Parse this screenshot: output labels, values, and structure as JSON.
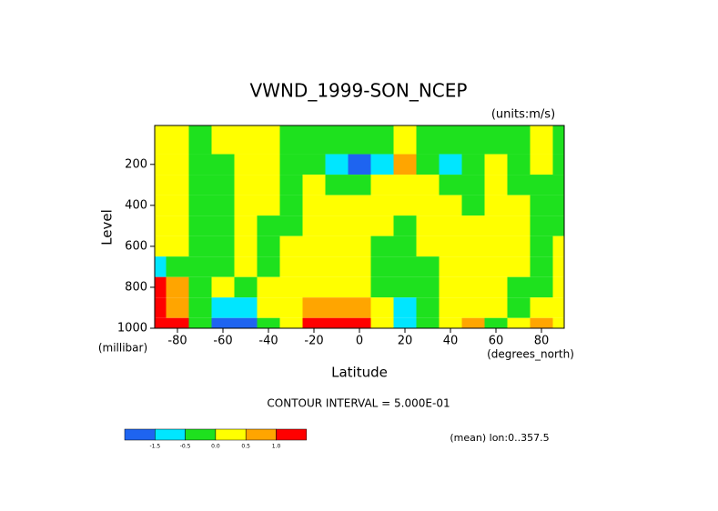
{
  "chart_data": {
    "type": "contour",
    "title": "VWND_1999-SON_NCEP",
    "units": "(units:m/s)",
    "y_label": "Level",
    "y_unit": "(millibar)",
    "x_label": "Latitude",
    "x_unit": "(degrees_north)",
    "footer": "CONTOUR INTERVAL = 5.000E-01",
    "note": "(mean) lon:0..357.5",
    "x": [
      -90,
      -80,
      -70,
      -60,
      -50,
      -40,
      -30,
      -20,
      -10,
      0,
      10,
      20,
      30,
      40,
      50,
      60,
      70,
      80,
      90
    ],
    "y": [
      100,
      200,
      300,
      400,
      500,
      600,
      700,
      800,
      900,
      1000
    ],
    "z": [
      [
        0.2,
        0.2,
        -0.2,
        0.2,
        0.2,
        0.2,
        -0.2,
        -0.2,
        -0.2,
        -0.2,
        -0.2,
        0.2,
        -0.2,
        -0.2,
        -0.2,
        -0.2,
        -0.2,
        0.2,
        -0.2
      ],
      [
        0.2,
        0.2,
        -0.2,
        -0.2,
        0.2,
        0.2,
        -0.2,
        -0.2,
        -1,
        -2,
        -1,
        0.7,
        -0.2,
        -1,
        -0.2,
        0.2,
        -0.2,
        0.2,
        -0.2
      ],
      [
        0.2,
        0.2,
        -0.2,
        -0.2,
        0.2,
        0.2,
        -0.2,
        0.2,
        -0.2,
        -0.2,
        0.2,
        0.2,
        0.2,
        -0.2,
        -0.2,
        0.2,
        -0.2,
        -0.2,
        -0.2
      ],
      [
        0.2,
        0.2,
        -0.2,
        -0.2,
        0.2,
        0.2,
        -0.2,
        0.2,
        0.2,
        0.2,
        0.2,
        0.2,
        0.2,
        0.2,
        -0.2,
        0.2,
        0.2,
        -0.2,
        -0.2
      ],
      [
        0.2,
        0.2,
        -0.2,
        -0.2,
        0.2,
        -0.2,
        -0.2,
        0.2,
        0.2,
        0.2,
        0.2,
        -0.2,
        0.2,
        0.2,
        0.2,
        0.2,
        0.2,
        -0.2,
        -0.2
      ],
      [
        0.2,
        0.2,
        -0.2,
        -0.2,
        0.2,
        -0.2,
        0.2,
        0.2,
        0.2,
        0.2,
        -0.2,
        -0.2,
        0.2,
        0.2,
        0.2,
        0.2,
        0.2,
        -0.2,
        0.2
      ],
      [
        -1,
        -0.2,
        -0.2,
        -0.2,
        0.2,
        -0.2,
        0.2,
        0.2,
        0.2,
        0.2,
        -0.2,
        -0.2,
        -0.2,
        0.2,
        0.2,
        0.2,
        0.2,
        -0.2,
        0.2
      ],
      [
        1.5,
        0.7,
        -0.2,
        0.2,
        -0.2,
        0.2,
        0.2,
        0.2,
        0.2,
        0.2,
        -0.2,
        -0.2,
        -0.2,
        0.2,
        0.2,
        0.2,
        -0.2,
        -0.2,
        0.2
      ],
      [
        1.5,
        0.7,
        -0.2,
        -1,
        -1,
        0.2,
        0.2,
        0.7,
        0.7,
        0.7,
        0.2,
        -1,
        -0.2,
        0.2,
        0.2,
        0.2,
        -0.2,
        0.2,
        0.2
      ],
      [
        1.5,
        1.5,
        -0.2,
        -2,
        -2,
        -0.2,
        0.2,
        1.5,
        1.5,
        1.5,
        0.2,
        -1,
        -0.2,
        0.2,
        0.7,
        -0.2,
        0.2,
        0.7,
        0.2
      ]
    ],
    "xlim": [
      -90,
      90
    ],
    "ylim": [
      1000,
      10
    ],
    "xticks": [
      -80,
      -60,
      -40,
      -20,
      0,
      20,
      40,
      60,
      80
    ],
    "yticks": [
      200,
      400,
      600,
      800,
      1000
    ],
    "levels": [
      -1.5,
      -0.5,
      0.0,
      0.5,
      1.0
    ],
    "level_labels": [
      "-1.5",
      "-0.5",
      "0.0",
      "0.5",
      "1.0"
    ],
    "colors": [
      "#1e64f0",
      "#00e6ff",
      "#1ee11e",
      "#ffff00",
      "#ffa500",
      "#ff0000"
    ]
  }
}
